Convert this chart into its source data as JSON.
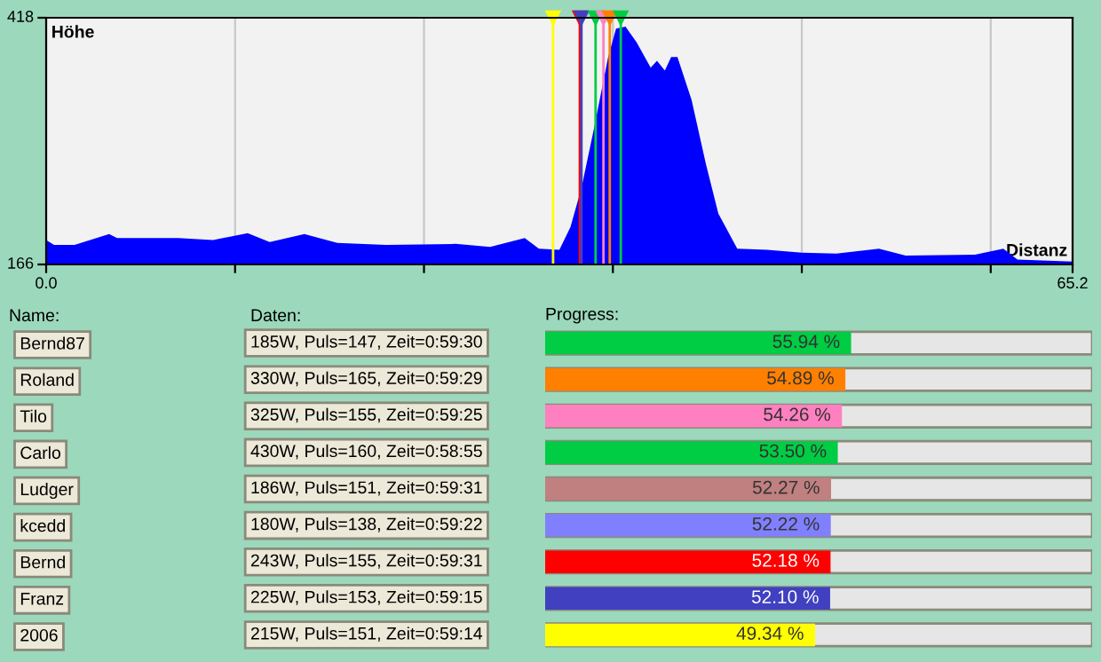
{
  "chart_data": [
    {
      "type": "area",
      "ylabel": "Höhe",
      "xlabel": "Distanz",
      "color": "#0000ff",
      "x": [
        0,
        0.5,
        1.8,
        4.0,
        4.5,
        6.2,
        8.4,
        10.6,
        12.8,
        14.2,
        16.4,
        18.5,
        21.6,
        26.0,
        28.2,
        30.4,
        31.3,
        32.6,
        33.3,
        34.0,
        34.8,
        35.7,
        36.2,
        36.8,
        37.5,
        38.4,
        38.8,
        39.3,
        39.7,
        40.1,
        41.0,
        41.9,
        42.7,
        43.9,
        45.8,
        48.0,
        50.2,
        52.9,
        54.6,
        59.0,
        60.8,
        61.7,
        65.2
      ],
      "values": [
        191,
        186,
        186,
        197,
        193,
        193,
        193,
        191,
        198,
        189,
        197,
        188,
        186,
        187,
        184,
        193,
        182,
        181,
        204,
        244,
        305,
        378,
        407,
        409,
        393,
        367,
        374,
        364,
        378,
        378,
        334,
        269,
        218,
        182,
        181,
        178,
        177,
        182,
        175,
        176,
        182,
        171,
        169
      ],
      "xlim": [
        0,
        65.2
      ],
      "ylim": [
        166,
        418
      ],
      "xticks": [
        {
          "value": 0,
          "label": "0.0"
        },
        {
          "value": 12,
          "label": null
        },
        {
          "value": 24,
          "label": null
        },
        {
          "value": 36,
          "label": null
        },
        {
          "value": 48,
          "label": null
        },
        {
          "value": 60,
          "label": null
        },
        65.2
      ],
      "yticks": [
        166,
        418
      ],
      "grid": "x",
      "ref_lines": [
        {
          "axis": "x",
          "value": 32.2,
          "color": "#ffff00"
        },
        {
          "axis": "x",
          "value": 33.9,
          "color": "#ff0000"
        },
        {
          "axis": "x",
          "value": 34.0,
          "color": "#4040c0"
        },
        {
          "axis": "x",
          "value": 34.9,
          "color": "#00cc44"
        },
        {
          "axis": "x",
          "value": 35.4,
          "color": "#ff80c0"
        },
        {
          "axis": "x",
          "value": 35.8,
          "color": "#ff8000"
        },
        {
          "axis": "x",
          "value": 36.5,
          "color": "#00cc44"
        }
      ]
    },
    {
      "type": "bar",
      "orientation": "horizontal",
      "title": "Progress:",
      "ylabel": "Name:",
      "categories": [
        "Bernd87",
        "Roland",
        "Tilo",
        "Carlo",
        "Ludger",
        "kcedd",
        "Bernd",
        "Franz",
        "2006"
      ],
      "values": [
        55.94,
        54.89,
        54.26,
        53.5,
        52.27,
        52.22,
        52.18,
        52.1,
        49.34
      ],
      "value_labels": [
        "55.94 %",
        "54.89 %",
        "54.26 %",
        "53.50 %",
        "52.27 %",
        "52.22 %",
        "52.18 %",
        "52.10 %",
        "49.34 %"
      ],
      "colors": [
        "#00cc44",
        "#ff8000",
        "#ff80c0",
        "#00cc44",
        "#c08080",
        "#8080ff",
        "#ff0000",
        "#4040c0",
        "#ffff00"
      ],
      "xlim": [
        0,
        100
      ],
      "tick_labels": "y",
      "annotations": [
        "Daten:",
        "185W, Puls=147, Zeit=0:59:30",
        "330W, Puls=165, Zeit=0:59:29",
        "325W, Puls=155, Zeit=0:59:25",
        "430W, Puls=160, Zeit=0:58:55",
        "186W, Puls=151, Zeit=0:59:31",
        "180W, Puls=138, Zeit=0:59:22",
        "243W, Puls=155, Zeit=0:59:31",
        "225W, Puls=153, Zeit=0:59:15",
        "215W, Puls=151, Zeit=0:59:14"
      ]
    }
  ]
}
